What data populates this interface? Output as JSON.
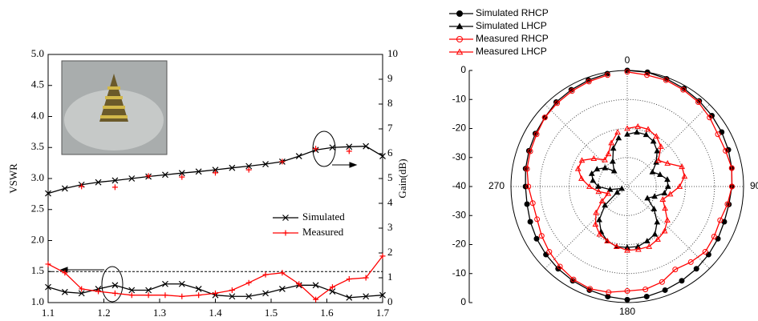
{
  "chart_data": [
    {
      "type": "line",
      "x": [
        1.1,
        1.13,
        1.16,
        1.19,
        1.22,
        1.25,
        1.28,
        1.31,
        1.34,
        1.37,
        1.4,
        1.43,
        1.46,
        1.49,
        1.52,
        1.55,
        1.58,
        1.61,
        1.64,
        1.67,
        1.7
      ],
      "xlim": [
        1.1,
        1.7
      ],
      "xticks": [
        1.1,
        1.2,
        1.3,
        1.4,
        1.5,
        1.6,
        1.7
      ],
      "ylim": [
        1,
        5
      ],
      "yticks": [
        {
          "value": 1,
          "label": "1.0"
        },
        1.5,
        {
          "value": 2,
          "label": "2.0"
        },
        2.5,
        {
          "value": 3,
          "label": "3.0"
        },
        3.5,
        {
          "value": 4,
          "label": "4.0"
        },
        4.5,
        {
          "value": 5,
          "label": "5.0"
        }
      ],
      "y2lim": [
        0,
        10
      ],
      "y2ticks": [
        0,
        1,
        2,
        3,
        4,
        5,
        6,
        7,
        8,
        9,
        10
      ],
      "ylabel": "VSWR",
      "y2label": "Gain(dB)",
      "reference_line": 1.5,
      "series": [
        {
          "name": "Simulated",
          "color": "#000000",
          "marker": "x",
          "line": true,
          "values": [
            1.25,
            1.17,
            1.15,
            1.22,
            1.28,
            1.2,
            1.2,
            1.3,
            1.3,
            1.22,
            1.12,
            1.1,
            1.1,
            1.15,
            1.22,
            1.28,
            1.28,
            1.18,
            1.08,
            1.1,
            1.12
          ]
        },
        {
          "name": "Measured",
          "color": "#ff0000",
          "marker": "+",
          "line": true,
          "values": [
            1.62,
            1.48,
            1.22,
            1.18,
            1.15,
            1.12,
            1.12,
            1.12,
            1.1,
            1.12,
            1.15,
            1.2,
            1.32,
            1.45,
            1.48,
            1.3,
            1.05,
            1.25,
            1.38,
            1.4,
            1.75
          ]
        },
        {
          "color": "#000000",
          "marker": "x",
          "line": true,
          "axis": "y2",
          "values": [
            4.4,
            4.6,
            4.75,
            4.85,
            4.92,
            5.0,
            5.08,
            5.15,
            5.22,
            5.28,
            5.35,
            5.43,
            5.5,
            5.58,
            5.68,
            5.9,
            6.15,
            6.25,
            6.28,
            6.3,
            5.9
          ]
        },
        {
          "color": "#ff0000",
          "marker": "+",
          "line": false,
          "axis": "y2",
          "values": [
            null,
            null,
            4.68,
            null,
            4.65,
            null,
            5.1,
            null,
            5.06,
            null,
            5.23,
            null,
            5.35,
            null,
            5.68,
            null,
            6.2,
            null,
            6.1,
            null,
            null
          ]
        }
      ]
    },
    {
      "type": "polar",
      "theta": [
        0,
        10,
        20,
        30,
        40,
        50,
        60,
        70,
        80,
        90,
        100,
        110,
        120,
        130,
        140,
        150,
        160,
        170,
        180,
        190,
        200,
        210,
        220,
        230,
        240,
        250,
        260,
        270,
        280,
        290,
        300,
        310,
        320,
        330,
        340,
        350
      ],
      "theta_ticks": [
        0,
        90,
        180,
        270
      ],
      "rlim": [
        -40,
        0
      ],
      "rticks": [
        -40,
        -30,
        -20,
        -10,
        0
      ],
      "series": [
        {
          "name": "Simulated RHCP",
          "color": "#000000",
          "marker": "filled-circle",
          "values": [
            0,
            0,
            -0.5,
            -1,
            -1.5,
            -2,
            -2.5,
            -3,
            -3.5,
            -4,
            -4.5,
            -4.5,
            -4,
            -3.5,
            -3,
            -2.5,
            -2,
            -1.5,
            -1,
            -1.5,
            -2,
            -2.5,
            -3,
            -3.5,
            -4,
            -4.5,
            -5,
            -5,
            -4.5,
            -4,
            -3.5,
            -3,
            -2,
            -1.5,
            -1,
            -0.5
          ]
        },
        {
          "name": "Simulated LHCP",
          "color": "#000000",
          "marker": "filled-triangle",
          "values": [
            -22,
            -21,
            -21,
            -22,
            -24,
            -27,
            -30,
            -28,
            -26,
            -26,
            -27,
            -30,
            -32,
            -28,
            -24,
            -21,
            -20,
            -19,
            -19,
            -19,
            -20,
            -22,
            -25,
            -30,
            -36,
            -38,
            -34,
            -30,
            -28,
            -27,
            -28,
            -30,
            -33,
            -30,
            -26,
            -23
          ]
        },
        {
          "name": "Measured RHCP",
          "color": "#ff0000",
          "marker": "open-circle",
          "values": [
            -0.5,
            -1,
            -1,
            -1.5,
            -2,
            -3,
            -4,
            -4,
            -3.5,
            -4,
            -5,
            -6,
            -5.5,
            -5,
            -6,
            -7,
            -5,
            -4,
            -4,
            -3,
            -2.5,
            -3,
            -4,
            -5,
            -6,
            -7,
            -7,
            -6,
            -5,
            -4.5,
            -4,
            -3,
            -2.5,
            -2,
            -1.5,
            -1
          ]
        },
        {
          "name": "Measured LHCP",
          "color": "#ff0000",
          "marker": "open-triangle",
          "values": [
            -20,
            -19,
            -19,
            -20,
            -22,
            -26,
            -24,
            -20,
            -20,
            -22,
            -25,
            -27,
            -25,
            -22,
            -20,
            -19,
            -18,
            -18,
            -18,
            -19,
            -20,
            -21,
            -23,
            -26,
            -30,
            -33,
            -30,
            -27,
            -24,
            -22,
            -22,
            -25,
            -28,
            -27,
            -24,
            -21
          ]
        }
      ]
    }
  ]
}
